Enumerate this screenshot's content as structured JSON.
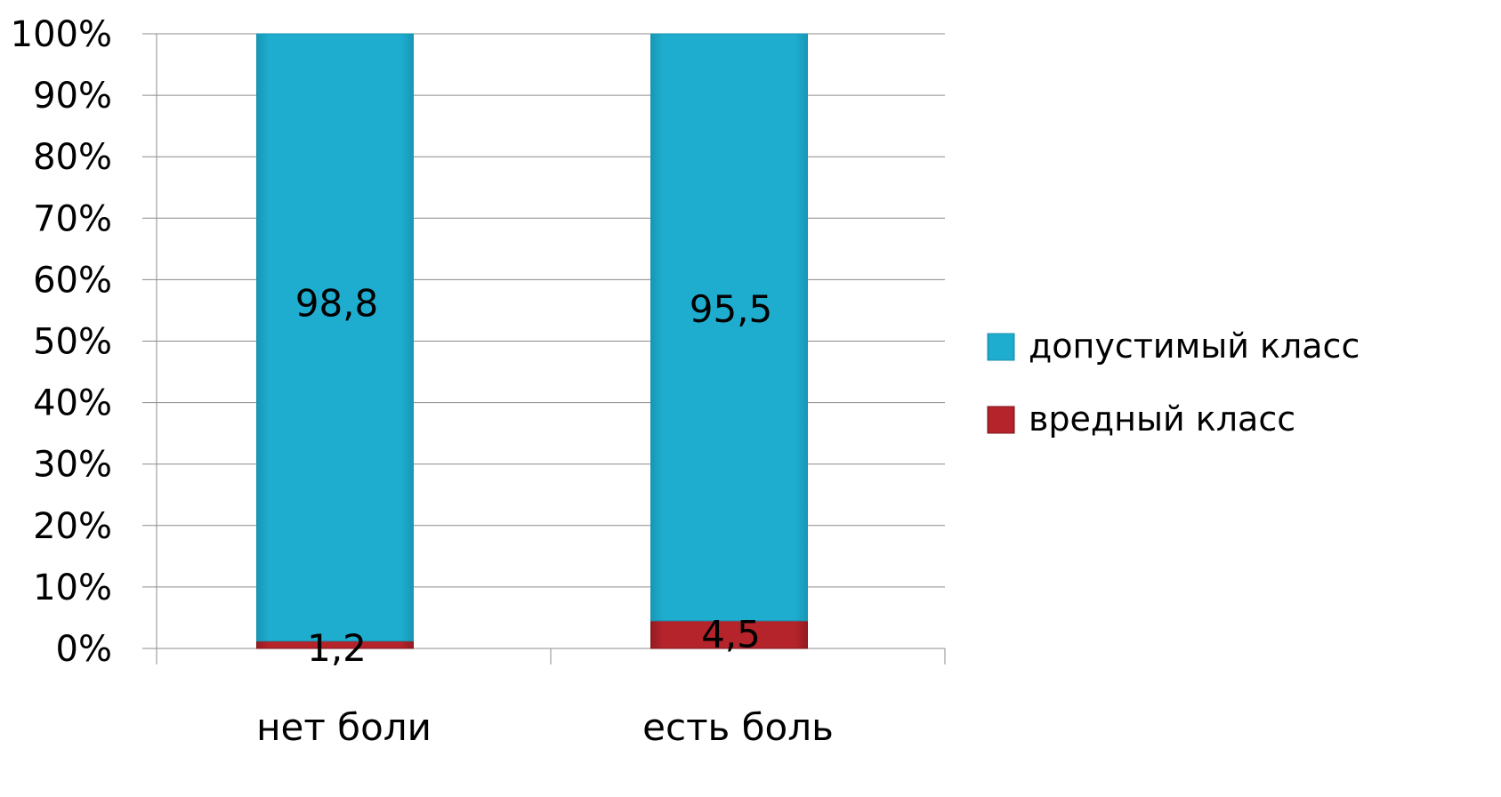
{
  "chart_data": {
    "type": "bar",
    "stacked": true,
    "percent_stacked": true,
    "categories": [
      "нет боли",
      "есть боль"
    ],
    "series": [
      {
        "name": "вредный класс",
        "values": [
          1.2,
          4.5
        ],
        "labels": [
          "1,2",
          "4,5"
        ],
        "color": "#B5242B"
      },
      {
        "name": "допустимый класс",
        "values": [
          98.8,
          95.5
        ],
        "labels": [
          "98,8",
          "95,5"
        ],
        "color": "#1FADCF"
      }
    ],
    "y_ticks": [
      "0%",
      "10%",
      "20%",
      "30%",
      "40%",
      "50%",
      "60%",
      "70%",
      "80%",
      "90%",
      "100%"
    ],
    "ylim": [
      0,
      100
    ],
    "grid": true,
    "legend_position": "right"
  }
}
